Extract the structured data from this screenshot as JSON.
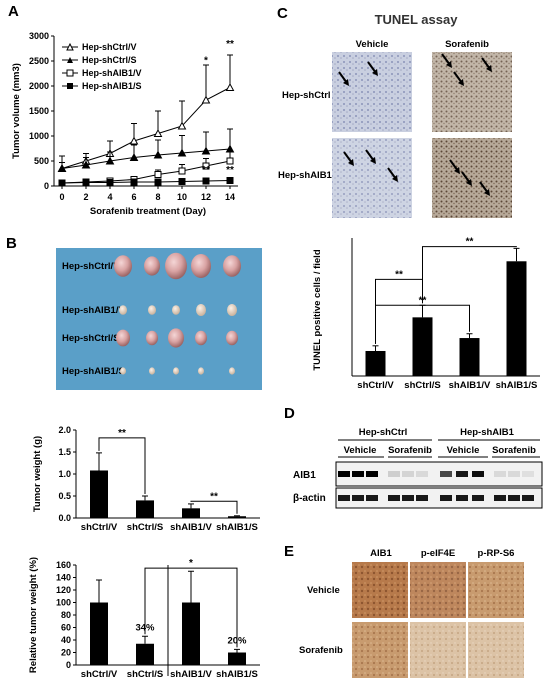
{
  "panels": {
    "A": "A",
    "B": "B",
    "C": "C",
    "D": "D",
    "E": "E"
  },
  "panel_c_title": "TUNEL assay",
  "tunel_columns": [
    "Vehicle",
    "Sorafenib"
  ],
  "tunel_rows": [
    "Hep-shCtrl",
    "Hep-shAIB1"
  ],
  "tumor_photo_rows": [
    "Hep-shCtrl/V",
    "Hep-shAIB1/V",
    "Hep-shCtrl/S",
    "Hep-shAIB1/S"
  ],
  "western": {
    "group_labels": [
      "Hep-shCtrl",
      "Hep-shAIB1"
    ],
    "treatment_labels": [
      "Vehicle",
      "Sorafenib",
      "Vehicle",
      "Sorafenib"
    ],
    "row_labels": [
      "AIB1",
      "β-actin"
    ]
  },
  "ihc": {
    "columns": [
      "AIB1",
      "p-eIF4E",
      "p-RP-S6"
    ],
    "rows": [
      "Vehicle",
      "Sorafenib"
    ]
  },
  "significance_mark": "**",
  "colors": {
    "bar": "#000000",
    "photo_bg": "#5a9fc8"
  },
  "chart_data": [
    {
      "id": "tumor-volume",
      "type": "line",
      "xlabel": "Sorafenib treatment (Day)",
      "ylabel": "Tumor volume (mm3)",
      "x": [
        0,
        2,
        4,
        6,
        8,
        10,
        12,
        14
      ],
      "xlim": [
        0,
        14
      ],
      "ylim": [
        0,
        3000
      ],
      "yticks": [
        0,
        500,
        1000,
        1500,
        2000,
        2500,
        3000
      ],
      "legend_position": "top-left",
      "series": [
        {
          "name": "Hep-shCtrl/V",
          "marker": "open-triangle",
          "values": [
            350,
            500,
            650,
            900,
            1050,
            1200,
            1720,
            1970
          ],
          "errors": [
            250,
            150,
            250,
            350,
            450,
            500,
            700,
            650
          ]
        },
        {
          "name": "Hep-shCtrl/S",
          "marker": "filled-triangle",
          "values": [
            350,
            420,
            500,
            570,
            620,
            660,
            700,
            740
          ],
          "errors": [
            120,
            150,
            180,
            250,
            300,
            350,
            380,
            400
          ]
        },
        {
          "name": "Hep-shAIB1/V",
          "marker": "open-square",
          "values": [
            60,
            80,
            100,
            130,
            230,
            300,
            400,
            500
          ],
          "errors": [
            20,
            30,
            40,
            60,
            90,
            130,
            150,
            200
          ]
        },
        {
          "name": "Hep-shAIB1/S",
          "marker": "filled-square",
          "values": [
            60,
            70,
            70,
            80,
            80,
            90,
            100,
            110
          ],
          "errors": [
            10,
            10,
            15,
            15,
            20,
            20,
            20,
            25
          ]
        }
      ],
      "annotations": [
        {
          "text": "*",
          "x": 12,
          "y": 2450
        },
        {
          "text": "**",
          "x": 14,
          "y": 2780
        },
        {
          "text": "**",
          "x": 12,
          "y": 260
        },
        {
          "text": "**",
          "x": 14,
          "y": 260
        }
      ]
    },
    {
      "id": "tumor-weight",
      "type": "bar",
      "categories": [
        "shCtrl/V",
        "shCtrl/S",
        "shAIB1/V",
        "shAIB1/S"
      ],
      "values": [
        1.08,
        0.4,
        0.22,
        0.04
      ],
      "errors": [
        0.4,
        0.1,
        0.1,
        0.01
      ],
      "ylabel": "Tumor weight (g)",
      "ylim": [
        0,
        2.0
      ],
      "yticks": [
        0.0,
        0.5,
        1.0,
        1.5,
        2.0
      ],
      "ytick_labels": [
        "0.0",
        "0.5",
        "1.0",
        "1.5",
        "2.0"
      ],
      "brackets": [
        {
          "from": 0,
          "to": 1,
          "y": 1.82,
          "label": "**"
        },
        {
          "from": 2,
          "to": 3,
          "y": 0.38,
          "label": "**"
        }
      ]
    },
    {
      "id": "relative-weight",
      "type": "bar",
      "categories": [
        "shCtrl/V",
        "shCtrl/S",
        "shAIB1/V",
        "shAIB1/S"
      ],
      "values": [
        100,
        34,
        100,
        20
      ],
      "errors": [
        36,
        12,
        50,
        5
      ],
      "data_labels": [
        "",
        "34%",
        "",
        "20%"
      ],
      "ylabel": "Relative tumor weight (%)",
      "ylim": [
        0,
        160
      ],
      "yticks": [
        0,
        20,
        40,
        60,
        80,
        100,
        120,
        140,
        160
      ],
      "brackets": [
        {
          "from": 1,
          "to": 3,
          "y": 155,
          "label": "*"
        }
      ]
    },
    {
      "id": "tunel-count",
      "type": "bar",
      "categories": [
        "shCtrl/V",
        "shCtrl/S",
        "shAIB1/V",
        "shAIB1/S"
      ],
      "values": [
        29,
        68,
        44,
        133
      ],
      "errors": [
        6,
        14,
        5,
        15
      ],
      "ylabel": "TUNEL positive cells / field",
      "ylim": [
        0,
        160
      ],
      "brackets": [
        {
          "from": 0,
          "to": 1,
          "y": 112,
          "label": "**"
        },
        {
          "from": 0,
          "to": 2,
          "y": 82,
          "label": "**"
        },
        {
          "from": 1,
          "to": 3,
          "y": 150,
          "label": "**"
        }
      ]
    }
  ]
}
